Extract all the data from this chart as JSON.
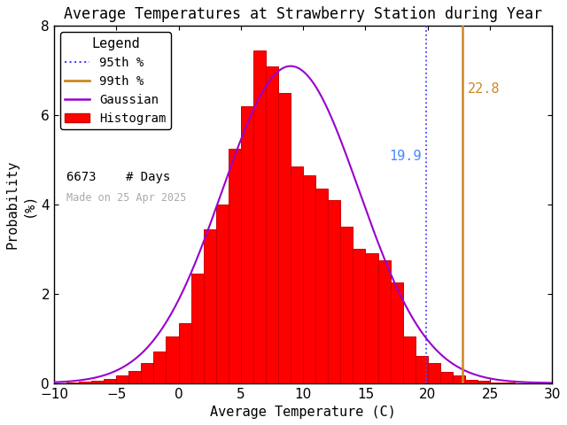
{
  "title": "Average Temperatures at Strawberry Station during Year",
  "xlabel": "Average Temperature (C)",
  "ylabel": "Probability\n(%)",
  "xlim": [
    -10,
    30
  ],
  "ylim": [
    0,
    8
  ],
  "yticks": [
    0,
    2,
    4,
    6,
    8
  ],
  "xticks": [
    -10,
    -5,
    0,
    5,
    10,
    15,
    20,
    25,
    30
  ],
  "bin_left_edges": [
    -9,
    -8,
    -7,
    -6,
    -5,
    -4,
    -3,
    -2,
    -1,
    0,
    1,
    2,
    3,
    4,
    5,
    6,
    7,
    8,
    9,
    10,
    11,
    12,
    13,
    14,
    15,
    16,
    17,
    18,
    19,
    20,
    21,
    22,
    23,
    24,
    25,
    26,
    27
  ],
  "bin_heights": [
    0.02,
    0.04,
    0.05,
    0.1,
    0.18,
    0.28,
    0.45,
    0.7,
    1.05,
    1.35,
    2.45,
    3.45,
    4.0,
    5.25,
    6.2,
    7.45,
    7.1,
    6.5,
    4.85,
    4.65,
    4.35,
    4.1,
    3.5,
    3.0,
    2.9,
    2.75,
    2.25,
    1.05,
    0.6,
    0.45,
    0.25,
    0.18,
    0.08,
    0.05,
    0.02,
    0.01,
    0.0
  ],
  "gauss_mean": 9.0,
  "gauss_std": 5.5,
  "gauss_amplitude": 7.1,
  "percentile_95": 19.9,
  "percentile_99": 22.8,
  "n_days": 6673,
  "made_on": "Made on 25 Apr 2025",
  "bar_color": "#ff0000",
  "bar_edgecolor": "#cc0000",
  "gauss_color": "#9900cc",
  "p95_color": "#4444ff",
  "p99_color": "#cc8822",
  "p95_label_color": "#4488ff",
  "p99_label_color": "#cc8822",
  "background_color": "#ffffff",
  "legend_title": "Legend",
  "title_fontsize": 12,
  "axis_fontsize": 11,
  "tick_fontsize": 11,
  "legend_fontsize": 10,
  "annotation_fontsize": 11
}
